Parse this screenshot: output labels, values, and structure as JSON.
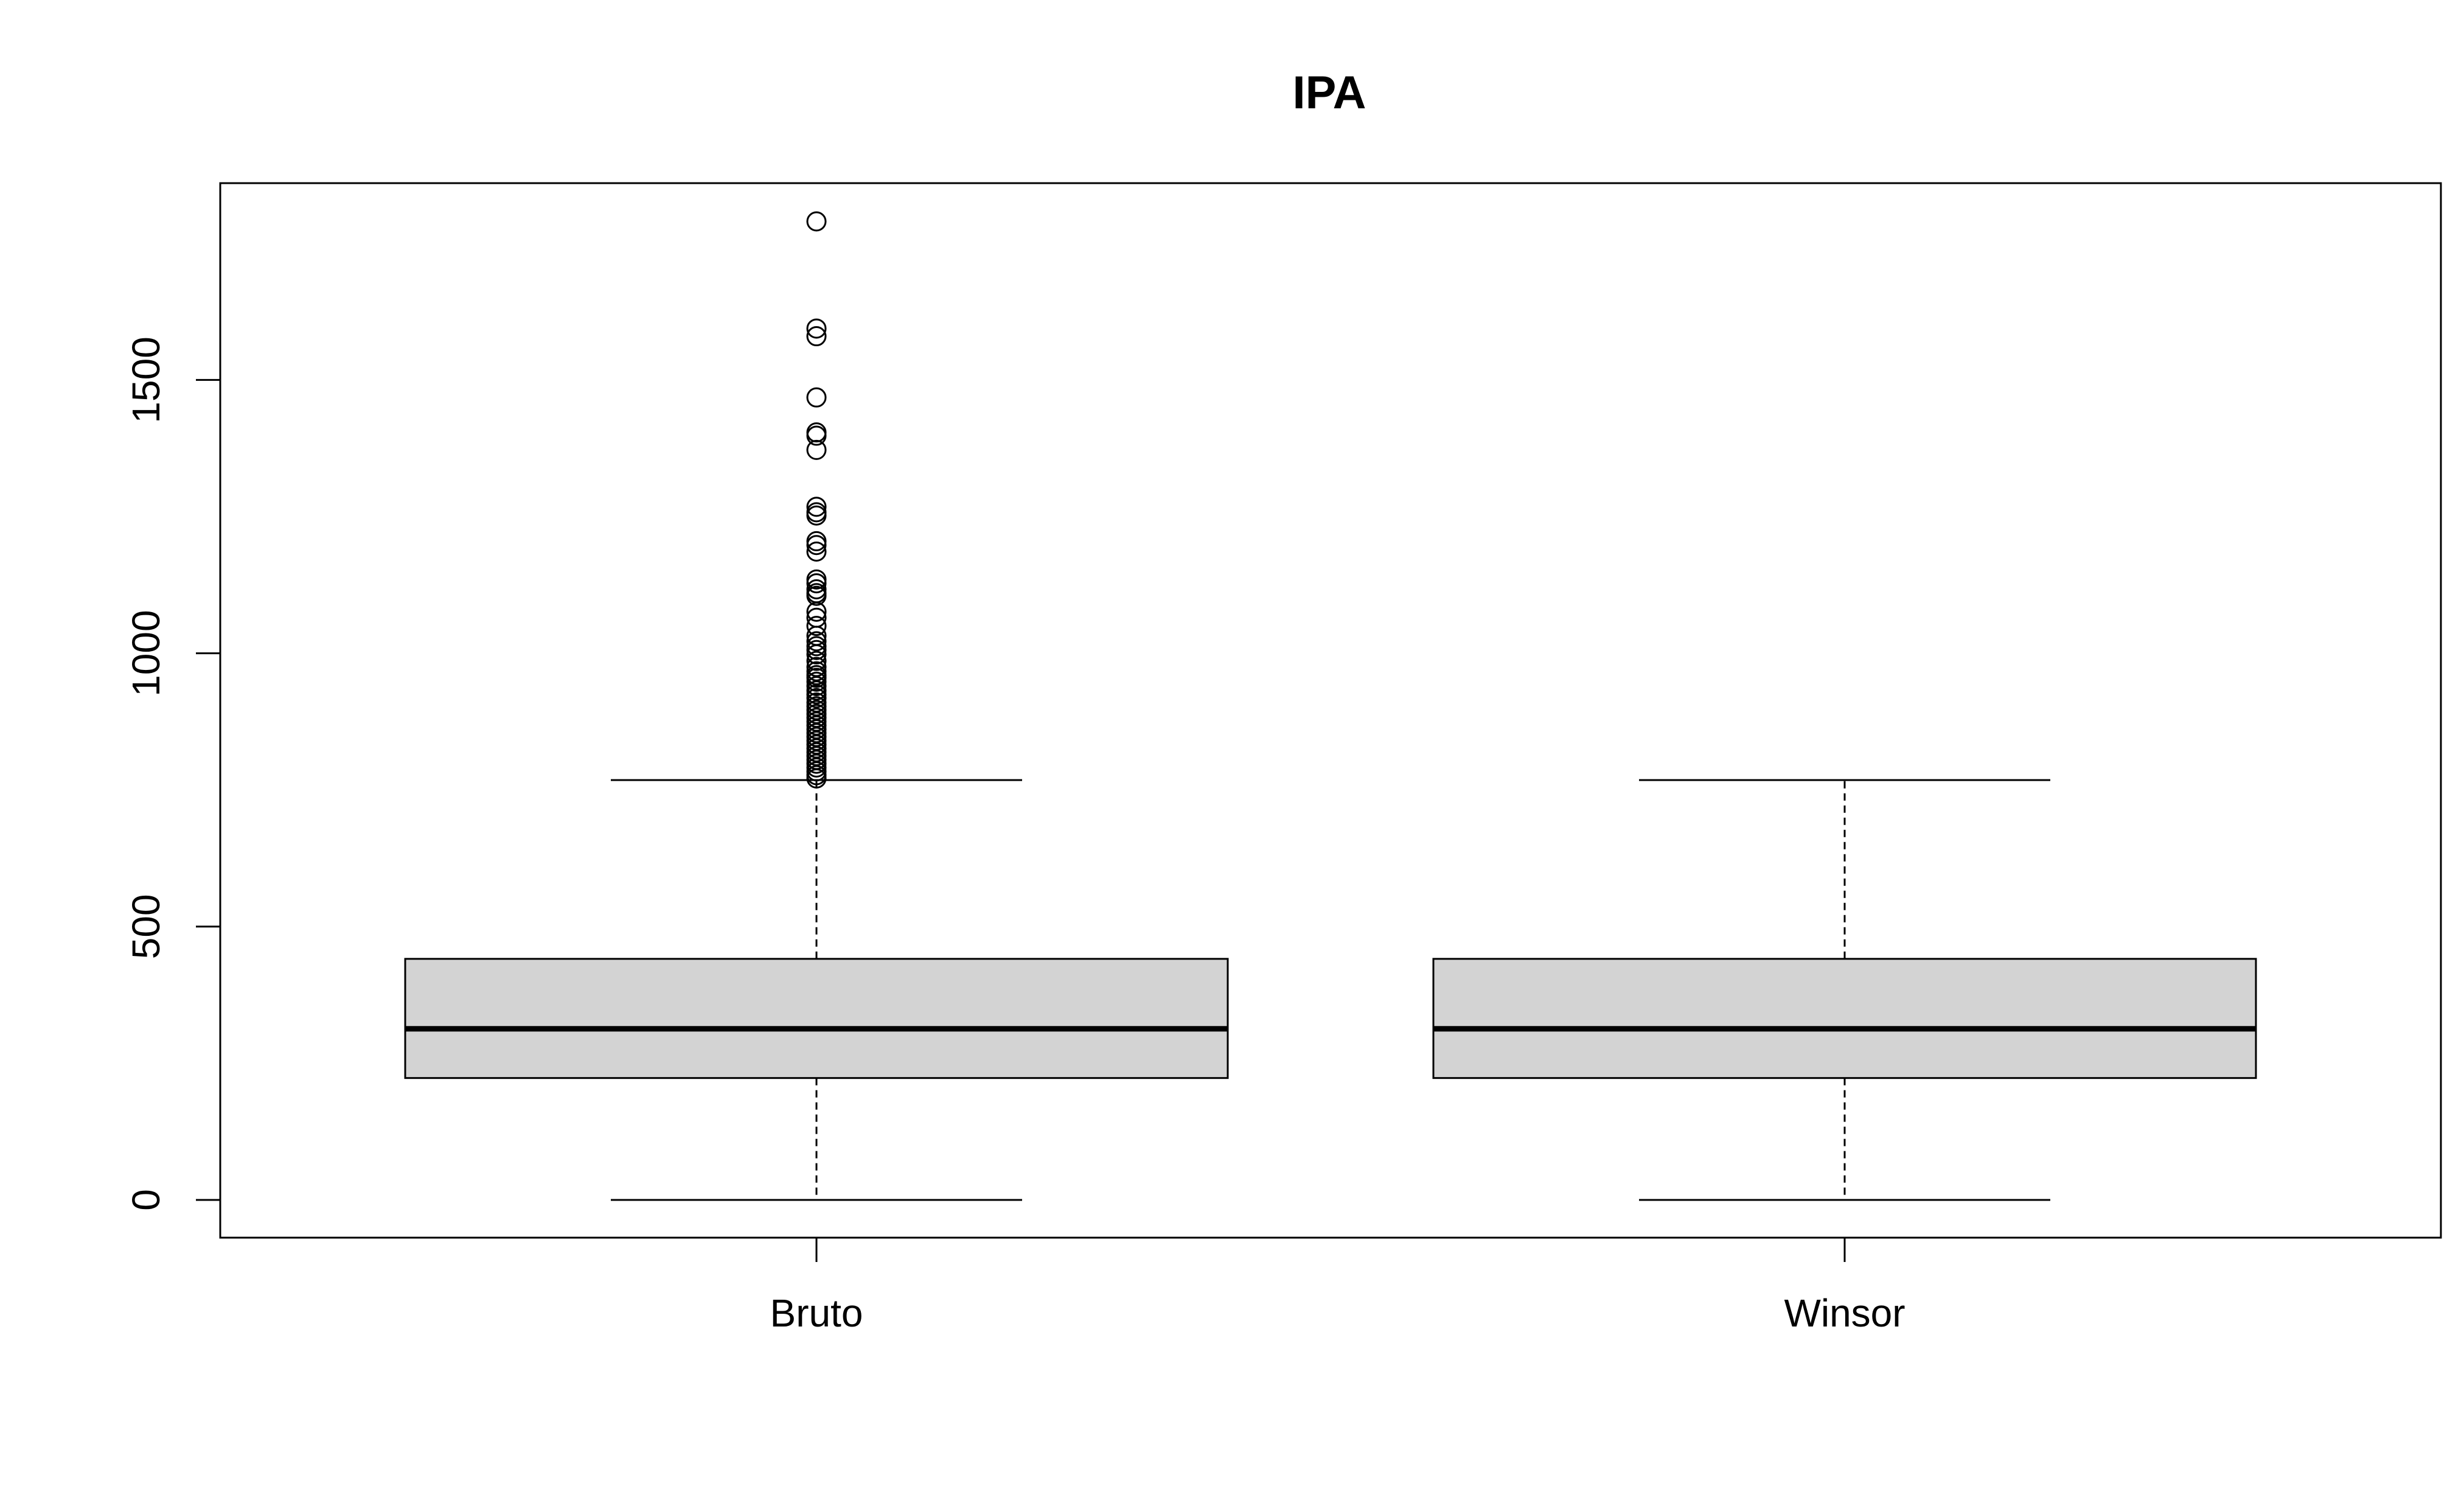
{
  "chart_data": {
    "type": "boxplot",
    "title": "IPA",
    "xlabel": "",
    "ylabel": "",
    "ylim": [
      -70,
      1860
    ],
    "y_ticks": [
      0,
      500,
      1000,
      1500
    ],
    "grid": false,
    "categories": [
      "Bruto",
      "Winsor"
    ],
    "box_fill": "#d3d3d3",
    "boxes": [
      {
        "name": "Bruto",
        "whisker_low": 0,
        "q1": 223,
        "median": 313,
        "q3": 441,
        "whisker_high": 768,
        "outliers": [
          1790,
          1594,
          1580,
          1468,
          1404,
          1398,
          1372,
          1268,
          1258,
          1252,
          1205,
          1198,
          1186,
          1135,
          1128,
          1117,
          1110,
          1105,
          1076,
          1065,
          1050,
          1032,
          1022,
          1013,
          1006,
          998,
          986,
          975,
          967,
          960,
          955,
          948,
          940,
          932,
          925,
          918,
          910,
          903,
          896,
          889,
          882,
          875,
          868,
          861,
          854,
          847,
          840,
          833,
          826,
          819,
          812,
          805,
          798,
          791,
          784,
          777,
          771
        ]
      },
      {
        "name": "Winsor",
        "whisker_low": 0,
        "q1": 223,
        "median": 313,
        "q3": 441,
        "whisker_high": 768,
        "outliers": []
      }
    ]
  }
}
